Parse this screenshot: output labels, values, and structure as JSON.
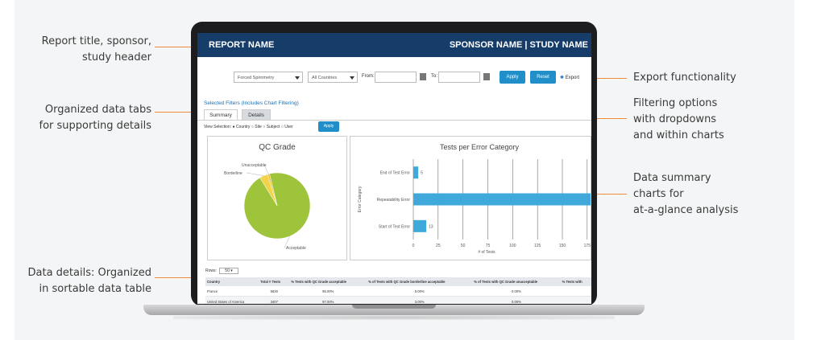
{
  "callouts": {
    "report_header": [
      "Report title, sponsor,",
      "study header"
    ],
    "data_tabs": [
      "Organized data tabs",
      "for supporting details"
    ],
    "data_details": [
      "Data details: Organized",
      "in sortable data table"
    ],
    "export": [
      "Export functionality"
    ],
    "filtering": [
      "Filtering options",
      "with dropdowns",
      "and within charts"
    ],
    "summary_charts": [
      "Data summary",
      "charts for",
      "at-a-glance analysis"
    ]
  },
  "header": {
    "report_name": "REPORT NAME",
    "sponsor_study": "SPONSOR NAME | STUDY NAME"
  },
  "filters": {
    "test_type": "Forced Spirometry",
    "countries": "All Countries",
    "from_label": "From:",
    "to_label": "To:",
    "apply_label": "Apply",
    "reset_label": "Reset",
    "export_label": "Export"
  },
  "selected_filters": "Selected Filters (Includes Chart Filtering)",
  "tabs": [
    "Summary",
    "Details"
  ],
  "view_selection": {
    "label": "View Selection:",
    "options": [
      "Country",
      "Site",
      "Subject",
      "User"
    ],
    "apply_label": "Apply"
  },
  "rows_control": {
    "label": "Rows:",
    "value": "50"
  },
  "table": {
    "headers": [
      "Country",
      "Total # Tests",
      "% Tests with QC Grade acceptable",
      "% of Tests with QC Grade borderline acceptable",
      "% of Tests with QC Grade unacceptable",
      "% Tests with"
    ],
    "rows": [
      [
        "France",
        "5630",
        "95.00%",
        "5.00%",
        "0.00%",
        ""
      ],
      [
        "United States of America",
        "3407",
        "97.00%",
        "3.00%",
        "0.00%",
        ""
      ]
    ]
  },
  "chart_data": [
    {
      "type": "pie",
      "title": "QC Grade",
      "labels": [
        "Acceptable",
        "Borderline",
        "Unacceptable"
      ],
      "values": [
        95,
        4,
        1
      ],
      "colors": [
        "#9dc43b",
        "#f2d34a",
        "#e8c23a"
      ]
    },
    {
      "type": "bar",
      "orientation": "horizontal",
      "title": "Tests per Error Category",
      "categories": [
        "End of Test Error",
        "Repeatability Error",
        "Start of Test Error"
      ],
      "values": [
        5,
        180,
        13
      ],
      "data_labels": [
        "5",
        "",
        "13"
      ],
      "xlabel": "# of Tests",
      "ylabel": "Error Category",
      "xticks": [
        "0",
        "25",
        "50",
        "75",
        "100",
        "125",
        "150",
        "175"
      ],
      "xlim": [
        0,
        180
      ],
      "color": "#3fa9dc"
    }
  ],
  "colors": {
    "header_bg": "#163d6a",
    "accent": "#1f8ec9",
    "callout_line": "#f08a3c"
  }
}
